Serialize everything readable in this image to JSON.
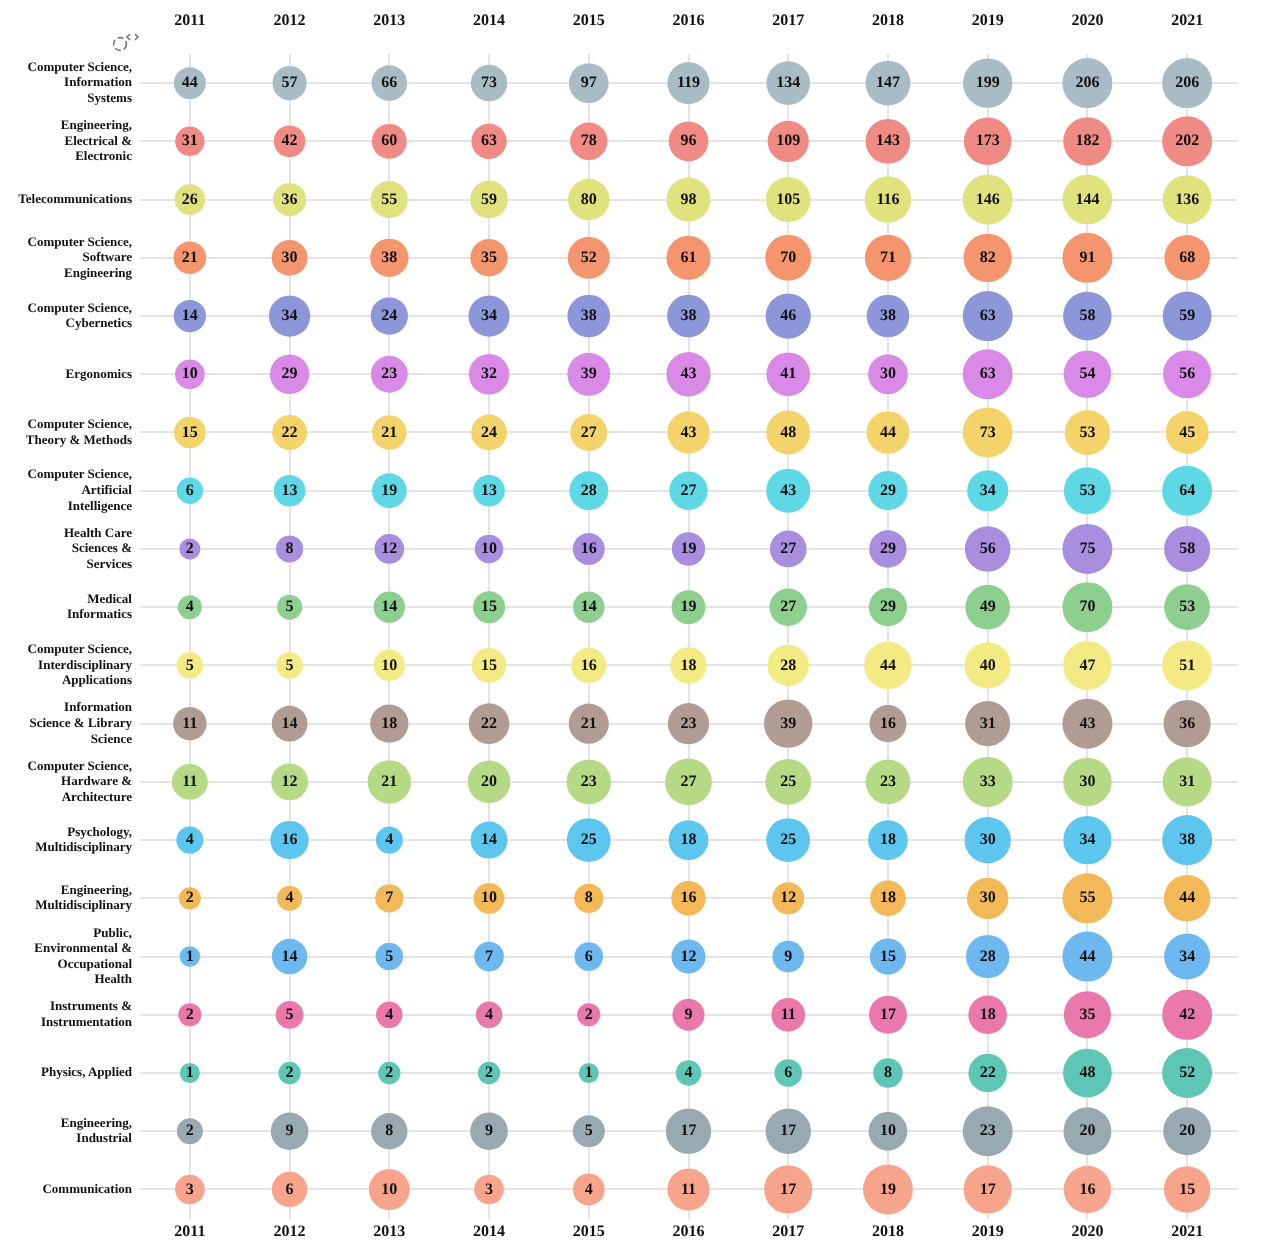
{
  "chart_data": {
    "type": "heatmap",
    "categories": [
      "2011",
      "2012",
      "2013",
      "2014",
      "2015",
      "2016",
      "2017",
      "2018",
      "2019",
      "2020",
      "2021"
    ],
    "y_categories": [
      "Computer Science, Information Systems",
      "Engineering, Electrical & Electronic",
      "Telecommunications",
      "Computer Science, Software Engineering",
      "Computer Science, Cybernetics",
      "Ergonomics",
      "Computer Science, Theory & Methods",
      "Computer Science, Artificial Intelligence",
      "Health Care Sciences & Services",
      "Medical Informatics",
      "Computer Science, Interdisciplinary Applications",
      "Information Science & Library Science",
      "Computer Science, Hardware & Architecture",
      "Psychology, Multidisciplinary",
      "Engineering, Multidisciplinary",
      "Public, Environmental & Occupational Health",
      "Instruments & Instrumentation",
      "Physics, Applied",
      "Engineering, Industrial",
      "Communication"
    ],
    "cells": [
      [
        44,
        57,
        66,
        73,
        97,
        119,
        134,
        147,
        199,
        206,
        206
      ],
      [
        31,
        42,
        60,
        63,
        78,
        96,
        109,
        143,
        173,
        182,
        202
      ],
      [
        26,
        36,
        55,
        59,
        80,
        98,
        105,
        116,
        146,
        144,
        136
      ],
      [
        21,
        30,
        38,
        35,
        52,
        61,
        70,
        71,
        82,
        91,
        68
      ],
      [
        14,
        34,
        24,
        34,
        38,
        38,
        46,
        38,
        63,
        58,
        59
      ],
      [
        10,
        29,
        23,
        32,
        39,
        43,
        41,
        30,
        63,
        54,
        56
      ],
      [
        15,
        22,
        21,
        24,
        27,
        43,
        48,
        44,
        73,
        53,
        45
      ],
      [
        6,
        13,
        19,
        13,
        28,
        27,
        43,
        29,
        34,
        53,
        64
      ],
      [
        2,
        8,
        12,
        10,
        16,
        19,
        27,
        29,
        56,
        75,
        58
      ],
      [
        4,
        5,
        14,
        15,
        14,
        19,
        27,
        29,
        49,
        70,
        53
      ],
      [
        5,
        5,
        10,
        15,
        16,
        18,
        28,
        44,
        40,
        47,
        51
      ],
      [
        11,
        14,
        18,
        22,
        21,
        23,
        39,
        16,
        31,
        43,
        36
      ],
      [
        11,
        12,
        21,
        20,
        23,
        27,
        25,
        23,
        33,
        30,
        31
      ],
      [
        4,
        16,
        4,
        14,
        25,
        18,
        25,
        18,
        30,
        34,
        38
      ],
      [
        2,
        4,
        7,
        10,
        8,
        16,
        12,
        18,
        30,
        55,
        44
      ],
      [
        1,
        14,
        5,
        7,
        6,
        12,
        9,
        15,
        28,
        44,
        34
      ],
      [
        2,
        5,
        4,
        4,
        2,
        9,
        11,
        17,
        18,
        35,
        42
      ],
      [
        1,
        2,
        2,
        2,
        1,
        4,
        6,
        8,
        22,
        48,
        52
      ],
      [
        2,
        9,
        8,
        9,
        5,
        17,
        17,
        10,
        23,
        20,
        20
      ],
      [
        3,
        6,
        10,
        3,
        4,
        11,
        17,
        19,
        17,
        16,
        15
      ]
    ],
    "colors": [
      "#a9bcc6",
      "#f08a84",
      "#e0e27e",
      "#f5956e",
      "#8d96d8",
      "#d98ae6",
      "#f5d36b",
      "#5fd8e6",
      "#a98ee0",
      "#8ccf8e",
      "#f4ea84",
      "#b19c94",
      "#b5d984",
      "#5cc6ef",
      "#f3b857",
      "#6cb8ef",
      "#ea78aa",
      "#5ec6b4",
      "#98a9b2",
      "#f7a48c"
    ],
    "data_labels": true,
    "grid": true
  }
}
